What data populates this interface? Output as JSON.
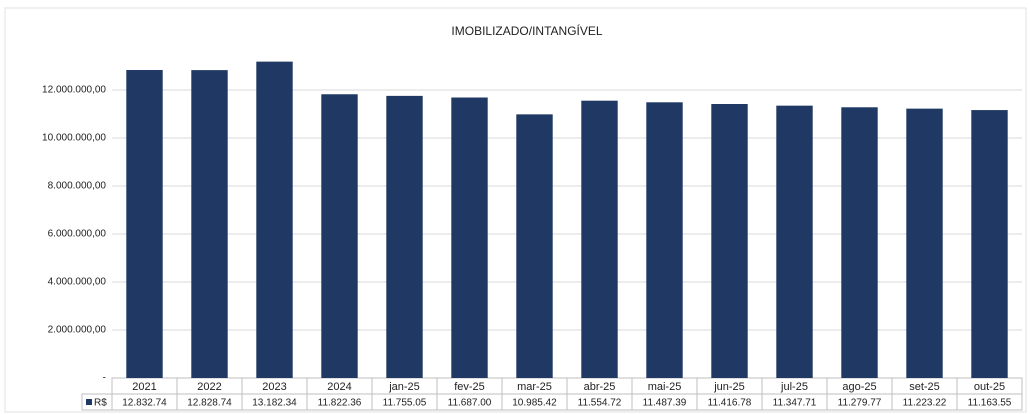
{
  "chart_data": {
    "type": "bar",
    "title": "IMOBILIZADO/INTANGÍVEL",
    "categories": [
      "2021",
      "2022",
      "2023",
      "2024",
      "jan-25",
      "fev-25",
      "mar-25",
      "abr-25",
      "mai-25",
      "jun-25",
      "jul-25",
      "ago-25",
      "set-25",
      "out-25"
    ],
    "series": [
      {
        "name": "R$",
        "color": "#1f3864",
        "values": [
          12832740,
          12828740,
          13182340,
          11822360,
          11755050,
          11687000,
          10985420,
          11554720,
          11487390,
          11416780,
          11347710,
          11279770,
          11223220,
          11163550
        ],
        "value_labels": [
          "12.832.74",
          "12.828.74",
          "13.182.34",
          "11.822.36",
          "11.755.05",
          "11.687.00",
          "10.985.42",
          "11.554.72",
          "11.487.39",
          "11.416.78",
          "11.347.71",
          "11.279.77",
          "11.223.22",
          "11.163.55"
        ]
      }
    ],
    "ylim": [
      0,
      14000000
    ],
    "yticks": [
      {
        "value": 0,
        "label": "-"
      },
      {
        "value": 2000000,
        "label": "2.000.000,00"
      },
      {
        "value": 4000000,
        "label": "4.000.000,00"
      },
      {
        "value": 6000000,
        "label": "6.000.000,00"
      },
      {
        "value": 8000000,
        "label": "8.000.000,00"
      },
      {
        "value": 10000000,
        "label": "10.000.000,00"
      },
      {
        "value": 12000000,
        "label": "12.000.000,00"
      }
    ],
    "grid": true
  }
}
